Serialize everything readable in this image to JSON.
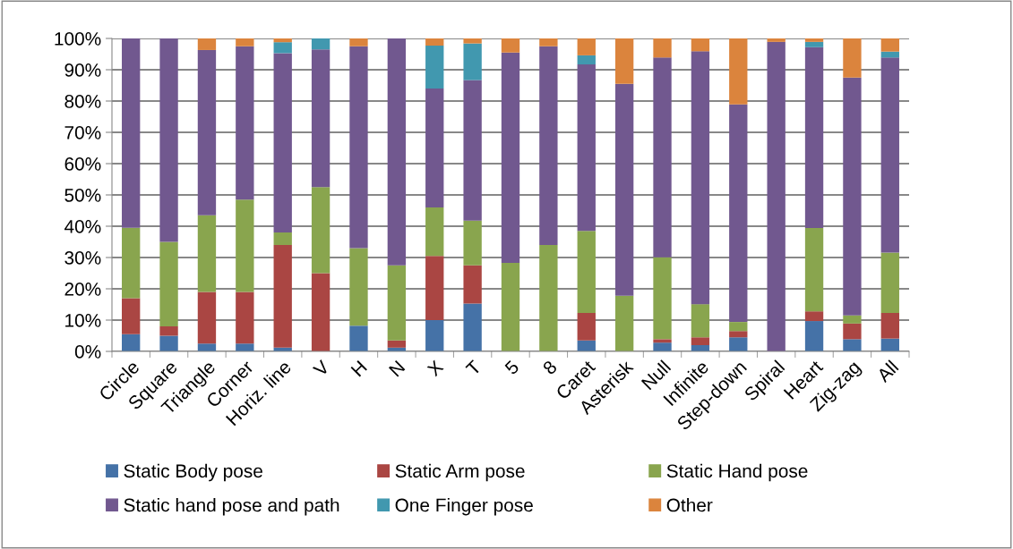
{
  "chart_data": {
    "type": "bar",
    "stacked": true,
    "categories": [
      "Circle",
      "Square",
      "Triangle",
      "Corner",
      "Horiz. line",
      "V",
      "H",
      "N",
      "X",
      "T",
      "5",
      "8",
      "Caret",
      "Asterisk",
      "Null",
      "Infinite",
      "Step-down",
      "Spiral",
      "Heart",
      "Zig-zag",
      "All"
    ],
    "series": [
      {
        "name": "Static Body pose",
        "color": "#4572a7",
        "values": [
          5.5,
          5,
          2.5,
          2.5,
          1.2,
          0,
          8.2,
          1.2,
          10,
          15.3,
          0,
          0,
          3.5,
          0,
          2.8,
          2,
          4.5,
          0,
          9.7,
          3.9,
          4.1
        ]
      },
      {
        "name": "Static Arm pose",
        "color": "#aa4643",
        "values": [
          11.5,
          3,
          16.5,
          16.5,
          32.8,
          25,
          0,
          2.3,
          20.5,
          12.2,
          0,
          0,
          8.8,
          0,
          1.1,
          2.5,
          2,
          0,
          3.1,
          5,
          8.2
        ]
      },
      {
        "name": "Static Hand pose",
        "color": "#89a54e",
        "values": [
          22.5,
          27,
          24.5,
          29.5,
          4,
          27.5,
          24.8,
          24,
          15.5,
          14.3,
          28.3,
          34,
          26.2,
          17.8,
          26.2,
          10.6,
          2.9,
          0,
          26.6,
          2.6,
          19.3
        ]
      },
      {
        "name": "Static hand pose and path",
        "color": "#71588f",
        "values": [
          60.5,
          65,
          52.8,
          49,
          57.3,
          44,
          64.5,
          72.5,
          38,
          44.9,
          67.2,
          63.5,
          53.2,
          67.7,
          63.8,
          80.8,
          69.5,
          98.9,
          57.8,
          76,
          62.3
        ]
      },
      {
        "name": "One Finger pose",
        "color": "#4198af",
        "values": [
          0,
          0,
          0,
          0,
          3.5,
          3.5,
          0,
          0,
          13.7,
          11.7,
          0,
          0,
          2.9,
          0,
          0,
          0,
          0,
          0,
          1.7,
          0,
          1.9
        ]
      },
      {
        "name": "Other",
        "color": "#db843d",
        "values": [
          0,
          0,
          3.7,
          2.5,
          1.2,
          0,
          2.5,
          0,
          2.3,
          1.6,
          4.5,
          2.5,
          5.4,
          14.5,
          6.1,
          4.1,
          21.1,
          1.1,
          1.1,
          12.5,
          4.2
        ]
      }
    ],
    "ylim": [
      0,
      100
    ],
    "yticks": [
      {
        "value": 0,
        "label": "0%"
      },
      {
        "value": 10,
        "label": "10%"
      },
      {
        "value": 20,
        "label": "20%"
      },
      {
        "value": 30,
        "label": "30%"
      },
      {
        "value": 40,
        "label": "40%"
      },
      {
        "value": 50,
        "label": "50%"
      },
      {
        "value": 60,
        "label": "60%"
      },
      {
        "value": 70,
        "label": "70%"
      },
      {
        "value": 80,
        "label": "80%"
      },
      {
        "value": 90,
        "label": "90%"
      },
      {
        "value": 100,
        "label": "100%"
      }
    ],
    "grid": "y",
    "legend": "bottom"
  }
}
